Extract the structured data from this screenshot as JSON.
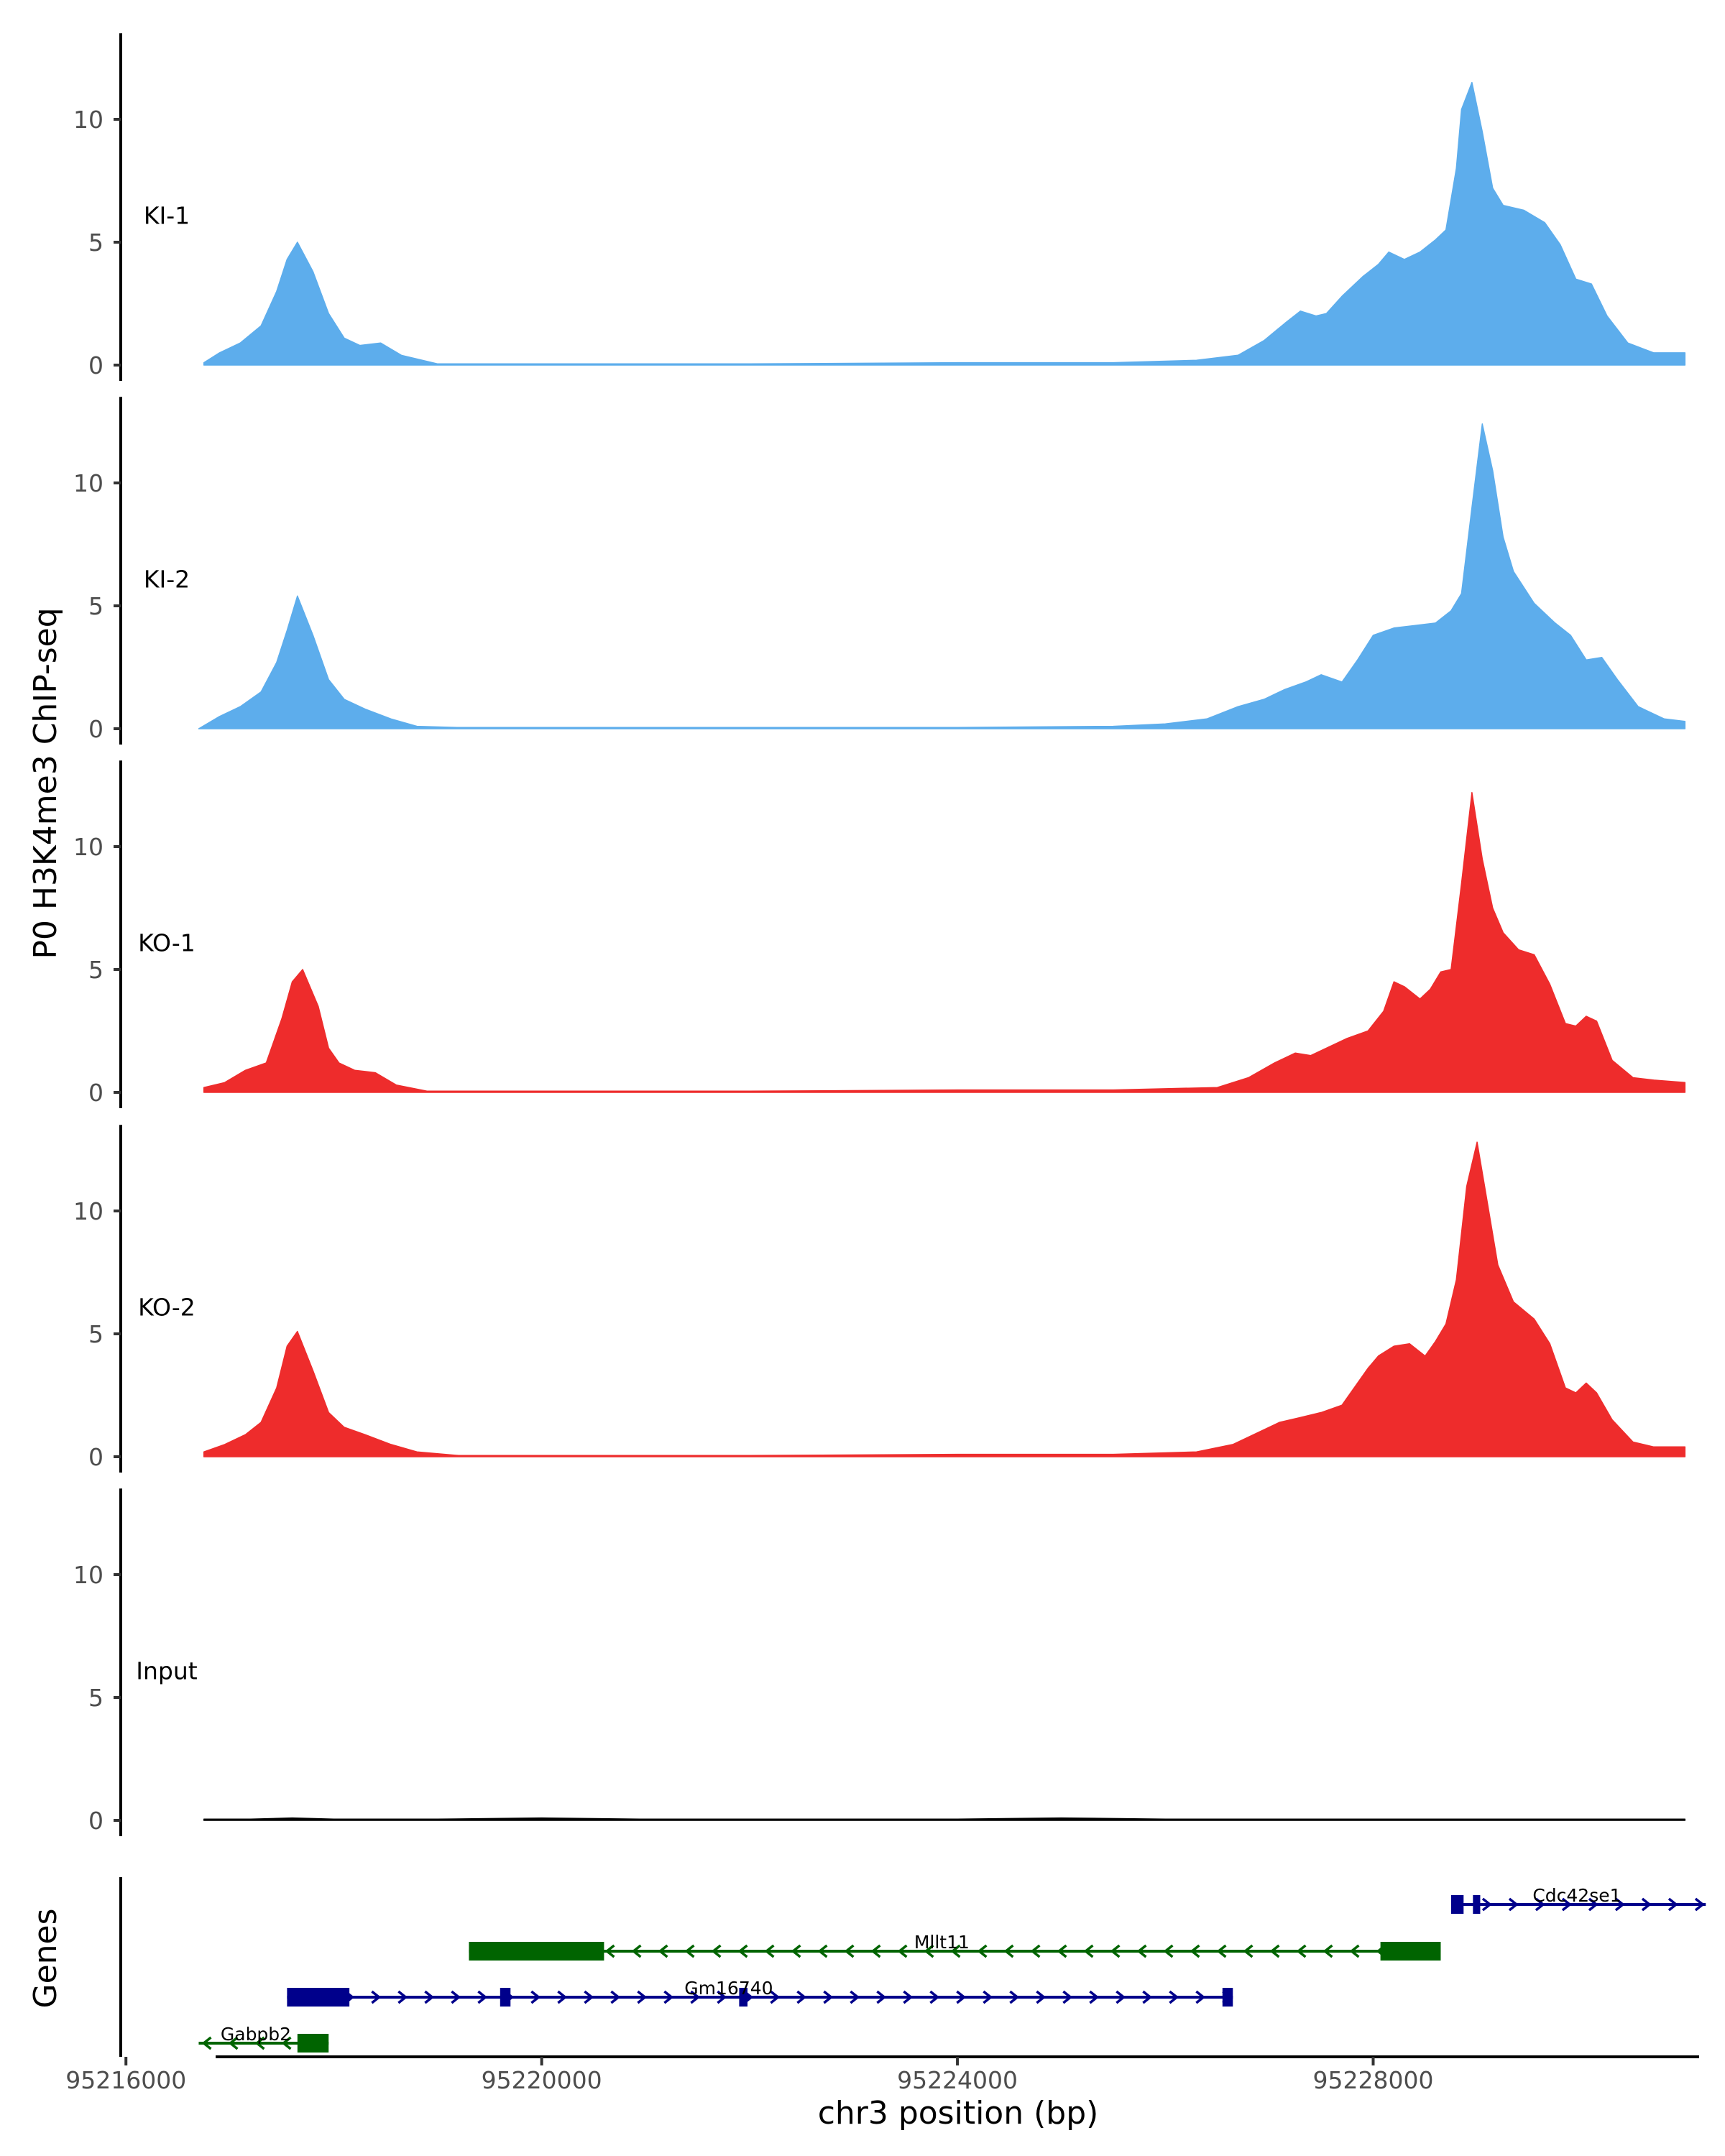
{
  "chart_data": {
    "type": "area",
    "title": "",
    "ylabel": "P0 H3K4me3 ChIP-seq",
    "xlabel": "chr3 position (bp)",
    "gene_track_label": "Genes",
    "xlim": [
      95215950,
      95231150
    ],
    "ylim": [
      0,
      13.5
    ],
    "yticks": [
      0,
      5,
      10
    ],
    "xticks": [
      {
        "value": 95216000,
        "label": "95216000"
      },
      {
        "value": 95220000,
        "label": "95220000"
      },
      {
        "value": 95224000,
        "label": "95224000"
      },
      {
        "value": 95228000,
        "label": "95228000"
      }
    ],
    "series": [
      {
        "name": "KI-1",
        "color": "#5DADEC",
        "x": [
          95216750,
          95216900,
          95217100,
          95217300,
          95217450,
          95217550,
          95217650,
          95217800,
          95217950,
          95218100,
          95218250,
          95218450,
          95218650,
          95219000,
          95220000,
          95222000,
          95224000,
          95225500,
          95226300,
          95226700,
          95226950,
          95227150,
          95227300,
          95227450,
          95227550,
          95227700,
          95227900,
          95228050,
          95228150,
          95228300,
          95228450,
          95228600,
          95228700,
          95228800,
          95228850,
          95228950,
          95229050,
          95229150,
          95229250,
          95229450,
          95229650,
          95229800,
          95229950,
          95230100,
          95230250,
          95230450,
          95230700,
          95231000
        ],
        "values": [
          0.1,
          0.5,
          0.9,
          1.6,
          3.0,
          4.3,
          5.0,
          3.8,
          2.1,
          1.1,
          0.8,
          0.9,
          0.4,
          0.05,
          0.05,
          0.05,
          0.1,
          0.1,
          0.2,
          0.4,
          1.0,
          1.7,
          2.2,
          2.0,
          2.1,
          2.8,
          3.6,
          4.1,
          4.6,
          4.3,
          4.6,
          5.1,
          5.5,
          8.0,
          10.4,
          11.5,
          9.5,
          7.2,
          6.5,
          6.3,
          5.8,
          4.9,
          3.5,
          3.3,
          2.0,
          0.9,
          0.5,
          0.5
        ]
      },
      {
        "name": "KI-2",
        "color": "#5DADEC",
        "x": [
          95216700,
          95216900,
          95217100,
          95217300,
          95217450,
          95217550,
          95217650,
          95217800,
          95217950,
          95218100,
          95218300,
          95218550,
          95218800,
          95219200,
          95220000,
          95222000,
          95224000,
          95225500,
          95226000,
          95226400,
          95226700,
          95226950,
          95227150,
          95227350,
          95227500,
          95227700,
          95227850,
          95228000,
          95228200,
          95228400,
          95228600,
          95228750,
          95228850,
          95228950,
          95229050,
          95229150,
          95229250,
          95229350,
          95229550,
          95229750,
          95229900,
          95230050,
          95230200,
          95230350,
          95230550,
          95230800,
          95231000
        ],
        "values": [
          0.0,
          0.5,
          0.9,
          1.5,
          2.7,
          4.0,
          5.4,
          3.8,
          2.0,
          1.2,
          0.8,
          0.4,
          0.1,
          0.05,
          0.05,
          0.05,
          0.05,
          0.1,
          0.2,
          0.4,
          0.9,
          1.2,
          1.6,
          1.9,
          2.2,
          1.9,
          2.8,
          3.8,
          4.1,
          4.2,
          4.3,
          4.8,
          5.5,
          9.0,
          12.4,
          10.5,
          7.8,
          6.4,
          5.1,
          4.3,
          3.8,
          2.8,
          2.9,
          2.0,
          0.9,
          0.4,
          0.3
        ]
      },
      {
        "name": "KO-1",
        "color": "#EE2C2C",
        "x": [
          95216750,
          95216950,
          95217150,
          95217350,
          95217500,
          95217600,
          95217700,
          95217850,
          95217950,
          95218050,
          95218200,
          95218400,
          95218600,
          95218900,
          95220000,
          95222000,
          95224000,
          95225500,
          95226500,
          95226800,
          95227050,
          95227250,
          95227400,
          95227550,
          95227750,
          95227950,
          95228100,
          95228200,
          95228300,
          95228450,
          95228550,
          95228650,
          95228750,
          95228850,
          95228950,
          95229050,
          95229150,
          95229250,
          95229400,
          95229550,
          95229700,
          95229850,
          95229950,
          95230050,
          95230150,
          95230300,
          95230500,
          95230700,
          95231000
        ],
        "values": [
          0.2,
          0.4,
          0.9,
          1.2,
          3.0,
          4.5,
          5.0,
          3.5,
          1.8,
          1.2,
          0.9,
          0.8,
          0.3,
          0.05,
          0.05,
          0.05,
          0.1,
          0.1,
          0.2,
          0.6,
          1.2,
          1.6,
          1.5,
          1.8,
          2.2,
          2.5,
          3.3,
          4.5,
          4.3,
          3.8,
          4.2,
          4.9,
          5.0,
          8.5,
          12.2,
          9.5,
          7.5,
          6.5,
          5.8,
          5.6,
          4.4,
          2.8,
          2.7,
          3.1,
          2.9,
          1.3,
          0.6,
          0.5,
          0.4
        ]
      },
      {
        "name": "KO-2",
        "color": "#EE2C2C",
        "x": [
          95216750,
          95216950,
          95217150,
          95217300,
          95217450,
          95217550,
          95217650,
          95217800,
          95217950,
          95218100,
          95218300,
          95218550,
          95218800,
          95219200,
          95220000,
          95222000,
          95224000,
          95225500,
          95226300,
          95226650,
          95226900,
          95227100,
          95227300,
          95227500,
          95227700,
          95227850,
          95227950,
          95228050,
          95228200,
          95228350,
          95228500,
          95228600,
          95228700,
          95228800,
          95228900,
          95229000,
          95229100,
          95229200,
          95229350,
          95229550,
          95229700,
          95229850,
          95229950,
          95230050,
          95230150,
          95230300,
          95230500,
          95230700,
          95231000
        ],
        "values": [
          0.2,
          0.5,
          0.9,
          1.4,
          2.8,
          4.5,
          5.1,
          3.5,
          1.8,
          1.2,
          0.9,
          0.5,
          0.2,
          0.05,
          0.05,
          0.05,
          0.1,
          0.1,
          0.2,
          0.5,
          1.0,
          1.4,
          1.6,
          1.8,
          2.1,
          3.0,
          3.6,
          4.1,
          4.5,
          4.6,
          4.1,
          4.7,
          5.4,
          7.2,
          11.0,
          12.8,
          10.3,
          7.8,
          6.3,
          5.6,
          4.6,
          2.8,
          2.6,
          3.0,
          2.6,
          1.5,
          0.6,
          0.4,
          0.4
        ]
      },
      {
        "name": "Input",
        "color": "#000000",
        "x": [
          95216750,
          95217200,
          95217600,
          95218000,
          95219000,
          95220000,
          95221000,
          95222000,
          95223000,
          95224000,
          95225000,
          95226000,
          95227000,
          95228000,
          95229000,
          95230000,
          95231000
        ],
        "values": [
          0.05,
          0.05,
          0.1,
          0.05,
          0.05,
          0.1,
          0.05,
          0.05,
          0.05,
          0.05,
          0.1,
          0.05,
          0.05,
          0.05,
          0.05,
          0.05,
          0.05
        ]
      }
    ],
    "genes": [
      {
        "name": "Cdc42se1",
        "row": 0,
        "strand": "+",
        "color": "#00008B",
        "start": 95228750,
        "end": 95231200,
        "exons": [
          [
            95228750,
            95228870
          ],
          [
            95228960,
            95229030
          ]
        ],
        "label_pos": 95229960
      },
      {
        "name": "Mllt11",
        "row": 1,
        "strand": "-",
        "color": "#006400",
        "start": 95219300,
        "end": 95228650,
        "exons": [
          [
            95219300,
            95220600
          ],
          [
            95228070,
            95228650
          ]
        ],
        "label_pos": 95223850
      },
      {
        "name": "Gm16740",
        "row": 2,
        "strand": "+",
        "color": "#00008B",
        "start": 95217550,
        "end": 95226650,
        "exons": [
          [
            95217550,
            95218150
          ],
          [
            95219600,
            95219700
          ],
          [
            95221900,
            95221980
          ],
          [
            95226550,
            95226650
          ]
        ],
        "label_pos": 95221800
      },
      {
        "name": "Gabpb2",
        "row": 3,
        "strand": "-",
        "color": "#006400",
        "start": 95216700,
        "end": 95217950,
        "exons": [
          [
            95217650,
            95217950
          ]
        ],
        "label_pos": 95217250
      }
    ]
  }
}
